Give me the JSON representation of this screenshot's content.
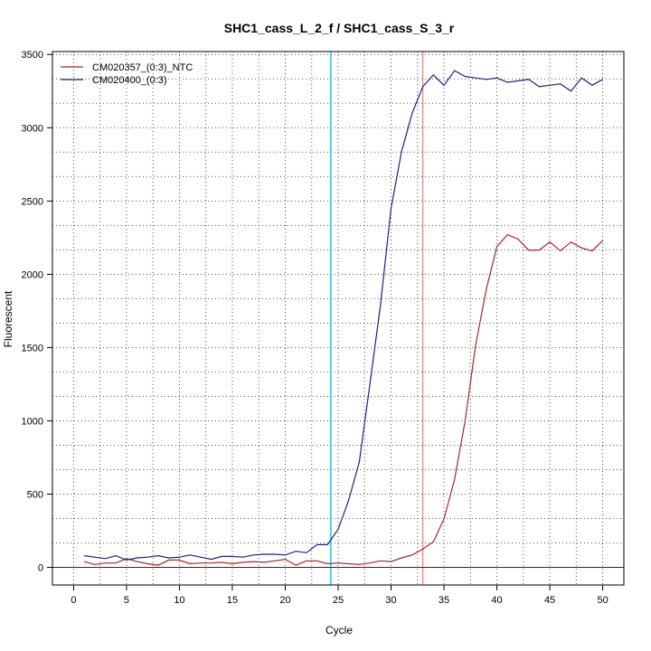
{
  "chart_data": {
    "type": "line",
    "title": "SHC1_cass_L_2_f / SHC1_cass_S_3_r",
    "xlabel": "Cycle",
    "ylabel": "Fluorescent",
    "xlim": [
      -2,
      52
    ],
    "ylim": [
      -120,
      3520
    ],
    "x_ticks": [
      0,
      5,
      10,
      15,
      20,
      25,
      30,
      35,
      40,
      45,
      50
    ],
    "y_ticks": [
      0,
      500,
      1000,
      1500,
      2000,
      2500,
      3000,
      3500
    ],
    "grid": "dotted",
    "legend_position": "top-left",
    "x": [
      1,
      2,
      3,
      4,
      5,
      6,
      7,
      8,
      9,
      10,
      11,
      12,
      13,
      14,
      15,
      16,
      17,
      18,
      19,
      20,
      21,
      22,
      23,
      24,
      25,
      26,
      27,
      28,
      29,
      30,
      31,
      32,
      33,
      34,
      35,
      36,
      37,
      38,
      39,
      40,
      41,
      42,
      43,
      44,
      45,
      46,
      47,
      48,
      49,
      50
    ],
    "series": [
      {
        "name": "CM020357_(0:3)_NTC",
        "color": "#b22222",
        "values": [
          40,
          20,
          30,
          30,
          60,
          40,
          25,
          15,
          50,
          50,
          25,
          30,
          30,
          35,
          25,
          35,
          40,
          35,
          45,
          55,
          15,
          45,
          45,
          25,
          30,
          25,
          20,
          30,
          45,
          40,
          65,
          85,
          125,
          175,
          330,
          600,
          1000,
          1520,
          1900,
          2190,
          2270,
          2240,
          2165,
          2165,
          2220,
          2160,
          2220,
          2180,
          2160,
          2230
        ]
      },
      {
        "name": "CM020400_(0:3)",
        "color": "#1a237e",
        "values": [
          80,
          70,
          60,
          80,
          50,
          65,
          70,
          80,
          65,
          70,
          85,
          70,
          55,
          75,
          75,
          70,
          85,
          90,
          90,
          85,
          110,
          100,
          155,
          155,
          260,
          460,
          720,
          1250,
          1790,
          2450,
          2840,
          3100,
          3280,
          3360,
          3290,
          3390,
          3350,
          3340,
          3330,
          3340,
          3310,
          3320,
          3330,
          3280,
          3290,
          3300,
          3250,
          3340,
          3290,
          3330
        ]
      }
    ],
    "reference_lines": {
      "vertical": [
        {
          "x": 24.3,
          "color": "#4dd0e1"
        },
        {
          "x": 33.0,
          "color": "#f48080"
        }
      ],
      "horizontal": [
        {
          "y": 0,
          "color": "#8b0000"
        }
      ]
    }
  }
}
